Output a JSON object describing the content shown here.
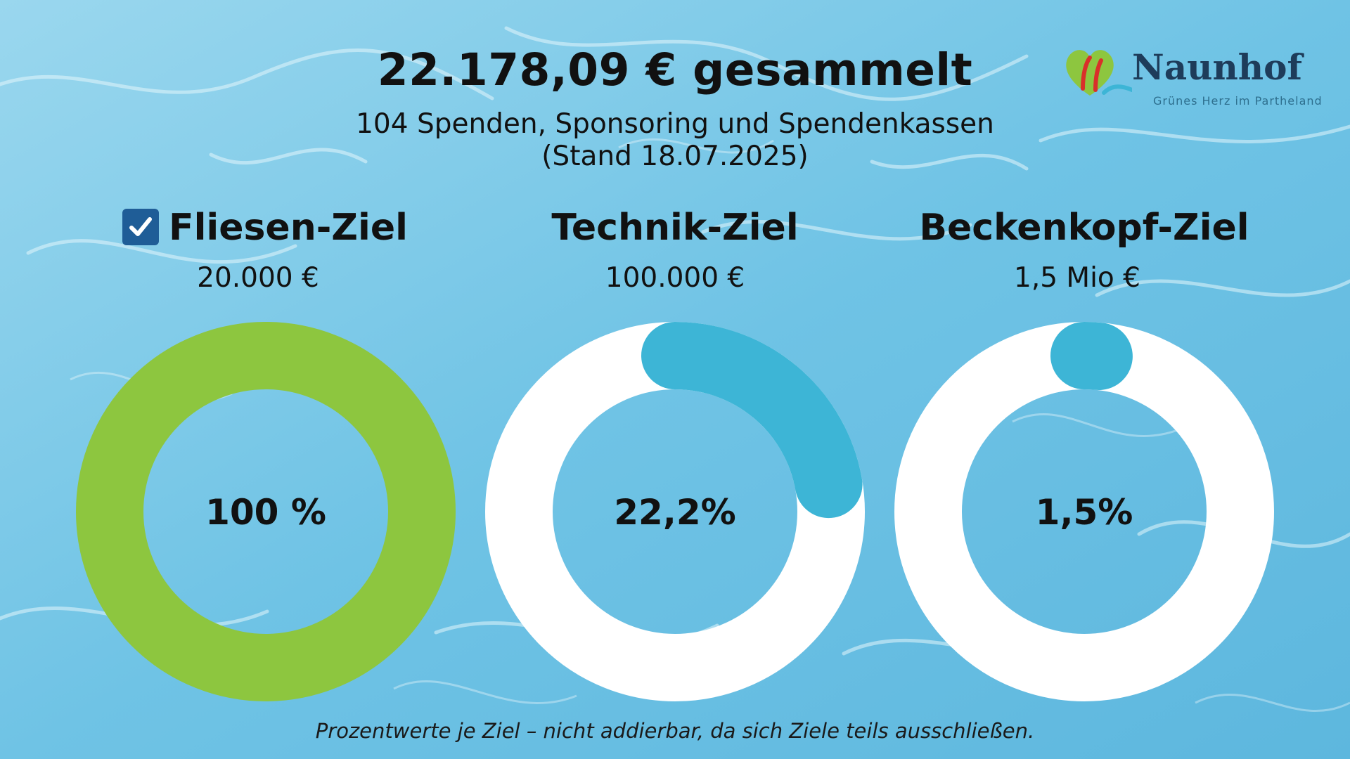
{
  "header": {
    "headline": "22.178,09 € gesammelt",
    "subline": "104 Spenden, Sponsoring und Spendenkassen",
    "date_line": "(Stand 18.07.2025)"
  },
  "logo": {
    "name": "Naunhof",
    "tagline": "Grünes Herz im Partheland"
  },
  "goals": [
    {
      "title": "Fliesen-Ziel",
      "amount": "20.000 €",
      "percent_label": "100 %",
      "checked": true
    },
    {
      "title": "Technik-Ziel",
      "amount": "100.000 €",
      "percent_label": "22,2%",
      "checked": false
    },
    {
      "title": "Beckenkopf-Ziel",
      "amount": "1,5 Mio €",
      "percent_label": "1,5%",
      "checked": false
    }
  ],
  "footnote": "Prozentwerte je Ziel – nicht addierbar, da sich Ziele teils ausschließen.",
  "colors": {
    "complete": "#8dc63f",
    "progress": "#3db5d6",
    "track": "#ffffff",
    "checkbox": "#1f5d97"
  },
  "chart_data": [
    {
      "type": "pie",
      "style": "donut",
      "categories": [
        "Fliesen-Ziel"
      ],
      "values": [
        100
      ],
      "unit": "%"
    },
    {
      "type": "pie",
      "style": "donut",
      "categories": [
        "Technik-Ziel"
      ],
      "values": [
        22.2
      ],
      "unit": "%"
    },
    {
      "type": "pie",
      "style": "donut",
      "categories": [
        "Beckenkopf-Ziel"
      ],
      "values": [
        1.5
      ],
      "unit": "%"
    }
  ]
}
